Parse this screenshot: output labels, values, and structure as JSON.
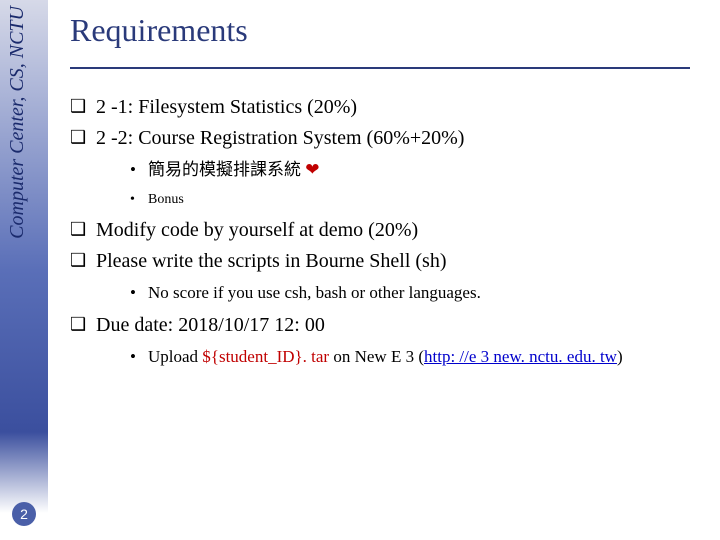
{
  "sidebar": {
    "org_text": "Computer Center, CS, NCTU",
    "page_number": "2"
  },
  "slide": {
    "title": "Requirements",
    "items": [
      {
        "text": "2 -1: Filesystem Statistics (20%)"
      },
      {
        "text": "2 -2: Course Registration System (60%+20%)",
        "sub": [
          {
            "text": "簡易的模擬排課系統 ",
            "heart": "❤"
          },
          {
            "text": "Bonus",
            "small": true
          }
        ]
      },
      {
        "text": "Modify code by yourself at demo (20%)"
      },
      {
        "text": "Please write the scripts in Bourne Shell (sh)",
        "sub": [
          {
            "text": "No score if you use csh, bash or other languages."
          }
        ]
      },
      {
        "text": "Due date: 2018/10/17 12: 00",
        "sub": [
          {
            "prefix": "Upload ",
            "red": "${student_ID}. tar",
            "mid": " on New E 3 (",
            "link_text": "http: //e 3 new. nctu. edu. tw",
            "suffix": ")"
          }
        ]
      }
    ]
  }
}
